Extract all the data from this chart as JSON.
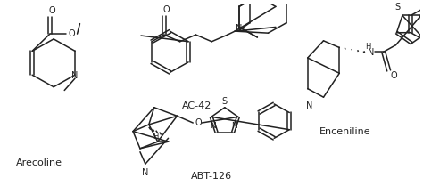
{
  "background_color": "#ffffff",
  "labels": {
    "arecoline": "Arecoline",
    "ac42": "AC-42",
    "enceniline": "Enceniline",
    "abt126": "ABT-126"
  },
  "font_size": 8,
  "line_color": "#222222",
  "line_width": 1.1
}
